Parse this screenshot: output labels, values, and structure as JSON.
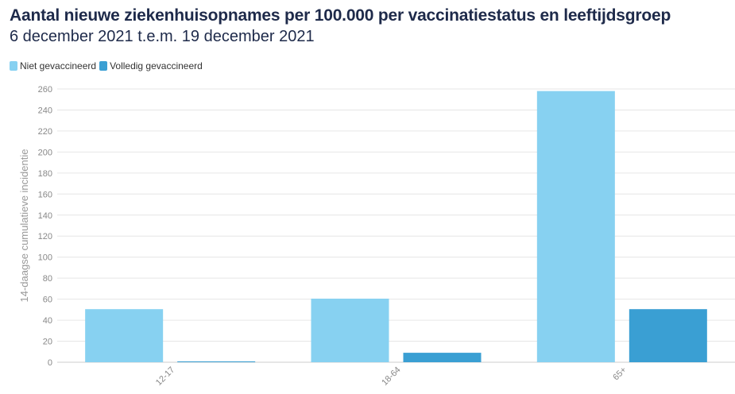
{
  "chart_data": {
    "type": "bar",
    "title": "Aantal nieuwe ziekenhuisopnames per 100.000 per vaccinatiestatus en leeftijdsgroep",
    "subtitle": "6 december 2021 t.e.m. 19 december 2021",
    "xlabel": "",
    "ylabel": "14-daagse cumulatieve incidentie",
    "categories": [
      "12-17",
      "18-64",
      "65+"
    ],
    "series": [
      {
        "name": "Niet gevaccineerd",
        "color": "#87d1f1",
        "values": [
          50.5,
          60.5,
          258
        ]
      },
      {
        "name": "Volledig gevaccineerd",
        "color": "#3a9fd3",
        "values": [
          0.8,
          9,
          50.5
        ]
      }
    ],
    "ylim": [
      0,
      260
    ],
    "yticks": [
      0,
      20,
      40,
      60,
      80,
      100,
      120,
      140,
      160,
      180,
      200,
      220,
      240,
      260
    ],
    "grid": true,
    "legend_position": "top-left"
  }
}
